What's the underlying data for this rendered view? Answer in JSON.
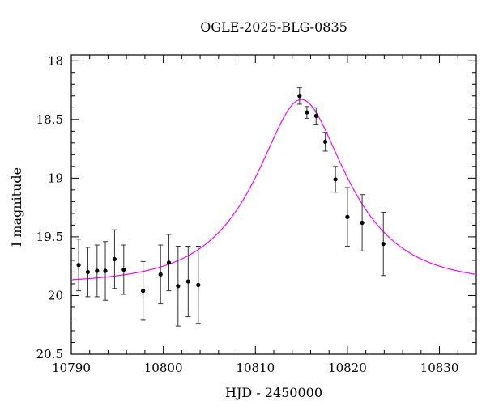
{
  "chart_data": {
    "type": "scatter",
    "title": "OGLE-2025-BLG-0835",
    "xlabel": "HJD - 2450000",
    "ylabel": "I magnitude",
    "xlim": [
      10790,
      10834
    ],
    "ylim": [
      20.5,
      17.95
    ],
    "y_inverted": true,
    "x_ticks": [
      10790,
      10800,
      10810,
      10820,
      10830
    ],
    "y_ticks": [
      18,
      18.5,
      19,
      19.5,
      20,
      20.5
    ],
    "x_tick_labels": [
      "10790",
      "10800",
      "10810",
      "10820",
      "10830"
    ],
    "y_tick_labels": [
      "18",
      "18.5",
      "19",
      "19.5",
      "20",
      "20.5"
    ],
    "grid": false,
    "legend": "none",
    "series": [
      {
        "kind": "points_with_error_bars",
        "color": "#000000",
        "points": [
          {
            "x": 10790.8,
            "y": 19.74,
            "err": 0.22
          },
          {
            "x": 10791.8,
            "y": 19.8,
            "err": 0.21
          },
          {
            "x": 10792.8,
            "y": 19.79,
            "err": 0.22
          },
          {
            "x": 10793.7,
            "y": 19.79,
            "err": 0.25
          },
          {
            "x": 10794.7,
            "y": 19.69,
            "err": 0.25
          },
          {
            "x": 10795.7,
            "y": 19.78,
            "err": 0.21
          },
          {
            "x": 10797.8,
            "y": 19.96,
            "err": 0.25
          },
          {
            "x": 10799.7,
            "y": 19.82,
            "err": 0.25
          },
          {
            "x": 10800.6,
            "y": 19.72,
            "err": 0.24
          },
          {
            "x": 10801.6,
            "y": 19.92,
            "err": 0.34
          },
          {
            "x": 10802.7,
            "y": 19.88,
            "err": 0.3
          },
          {
            "x": 10803.8,
            "y": 19.91,
            "err": 0.33
          },
          {
            "x": 10814.8,
            "y": 18.3,
            "err": 0.07
          },
          {
            "x": 10815.6,
            "y": 18.44,
            "err": 0.05
          },
          {
            "x": 10816.6,
            "y": 18.47,
            "err": 0.07
          },
          {
            "x": 10817.6,
            "y": 18.69,
            "err": 0.08
          },
          {
            "x": 10818.7,
            "y": 19.01,
            "err": 0.11
          },
          {
            "x": 10820.0,
            "y": 19.33,
            "err": 0.25
          },
          {
            "x": 10821.6,
            "y": 19.38,
            "err": 0.24
          },
          {
            "x": 10823.9,
            "y": 19.56,
            "err": 0.27
          }
        ]
      },
      {
        "kind": "model_curve",
        "color": "#ff00ff",
        "t0": 10815.0,
        "tE": 8.5,
        "u0": 0.5,
        "m_base": 19.9,
        "peak_mag": 18.33
      }
    ]
  }
}
